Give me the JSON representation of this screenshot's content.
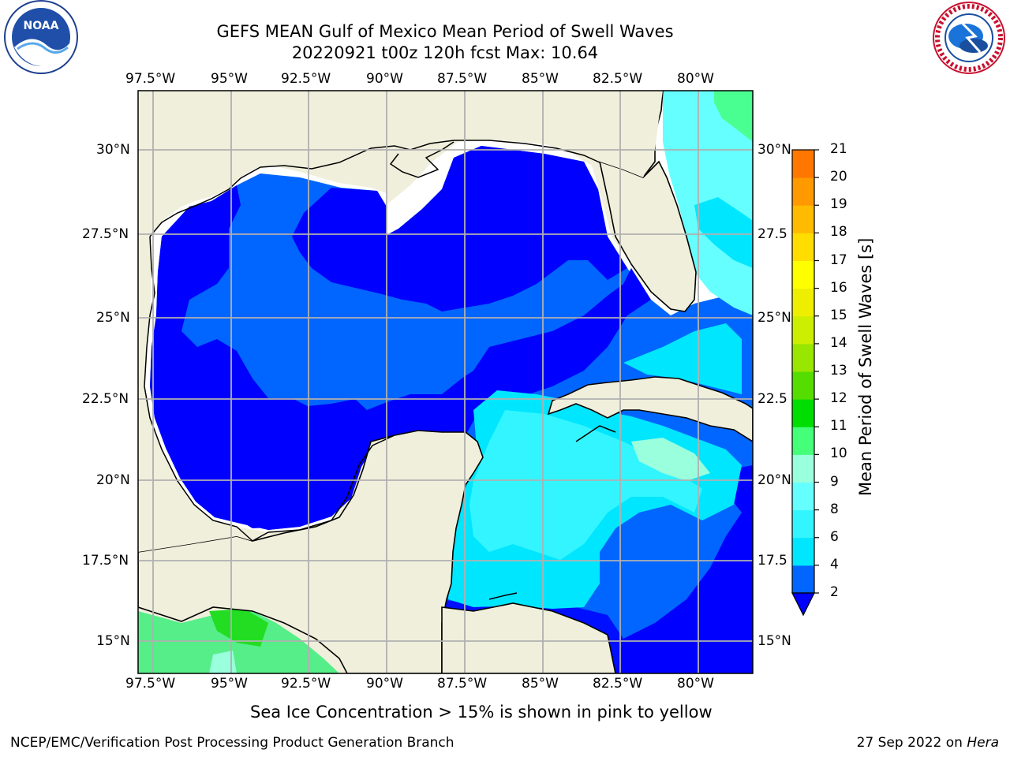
{
  "title": {
    "line1": "GEFS MEAN Gulf of Mexico Mean Period of Swell Waves",
    "line2": "20220921 t00z 120h fcst   Max: 10.64"
  },
  "logos": {
    "left": {
      "icon": "noaa-logo-icon",
      "text": "NOAA"
    },
    "right": {
      "icon": "nws-logo-icon",
      "text": "NATIONAL WEATHER SERVICE"
    }
  },
  "map": {
    "lon_ticks_top": [
      "97.5°W",
      "95°W",
      "92.5°W",
      "90°W",
      "87.5°W",
      "85°W",
      "82.5°W",
      "80°W"
    ],
    "lon_ticks_bottom": [
      "97.5°W",
      "95°W",
      "92.5°W",
      "90°W",
      "87.5°W",
      "85°W",
      "82.5°W",
      "80°W"
    ],
    "lat_ticks_left": [
      "30°N",
      "27.5°N",
      "25°N",
      "22.5°N",
      "20°N",
      "17.5°N",
      "15°N"
    ],
    "lat_ticks_right": [
      "30°N",
      "27.5",
      "25°N",
      "22.5",
      "20°N",
      "17.5",
      "15°N"
    ],
    "colors": {
      "land": "#efefdc",
      "coast": "#000000",
      "grid": "#b0b0b0"
    }
  },
  "colorbar": {
    "label": "Mean Period of Swell Waves [s]",
    "ticks": [
      "2",
      "4",
      "6",
      "8",
      "9",
      "10",
      "11",
      "12",
      "13",
      "14",
      "15",
      "16",
      "17",
      "18",
      "19",
      "20",
      "21"
    ],
    "colors": [
      "#0066ff",
      "#00e6ff",
      "#33f5ff",
      "#66ffff",
      "#99ffdd",
      "#44ff77",
      "#00dd00",
      "#55dd00",
      "#99e600",
      "#ccee00",
      "#eeee00",
      "#ffff00",
      "#ffdd00",
      "#ffbb00",
      "#ff9900",
      "#ff7700",
      "#ff4400",
      "#ff0000"
    ],
    "under_color": "#0000ff"
  },
  "caption": "Sea Ice Concentration > 15% is shown in pink to yellow",
  "footer": {
    "left": "NCEP/EMC/Verification Post Processing Product Generation Branch",
    "right_prefix": "27 Sep 2022 on ",
    "right_host": "Hera"
  }
}
